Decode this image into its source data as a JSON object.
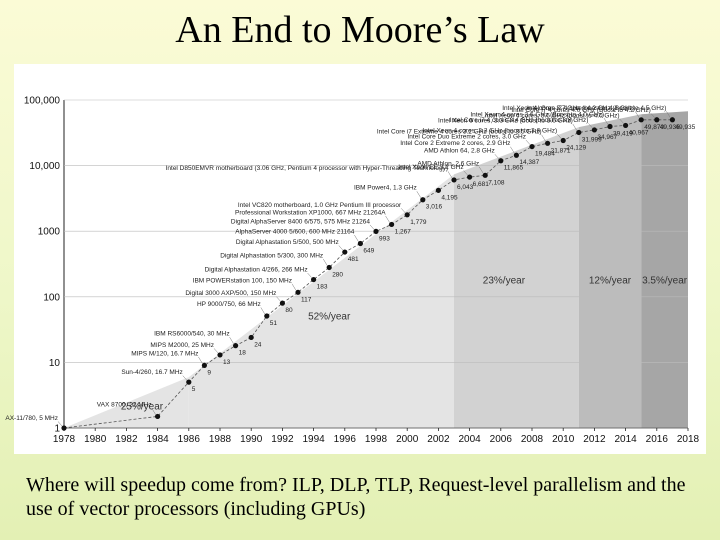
{
  "slide": {
    "title": "An End to Moore’s Law",
    "caption": "Where will speedup come from?  ILP, DLP, TLP, Request-level parallelism and the use of vector processors (including GPUs)"
  },
  "chart_data": {
    "type": "scatter",
    "title": "",
    "xlabel": "",
    "ylabel": "",
    "y_scale": "log",
    "xlim": [
      1978,
      2018
    ],
    "ylim": [
      1,
      100000
    ],
    "x_ticks": [
      "1978",
      "1980",
      "1982",
      "1984",
      "1986",
      "1988",
      "1990",
      "1992",
      "1994",
      "1996",
      "1998",
      "2000",
      "2002",
      "2004",
      "2006",
      "2008",
      "2010",
      "2012",
      "2014",
      "2016",
      "2018"
    ],
    "y_ticks": [
      {
        "value": 1,
        "label": "1"
      },
      {
        "value": 10,
        "label": "10"
      },
      {
        "value": 100,
        "label": "100"
      },
      {
        "value": 1000,
        "label": "1000"
      },
      {
        "value": 10000,
        "label": "10,000"
      },
      {
        "value": 100000,
        "label": "100,000"
      }
    ],
    "grid": true,
    "colors": {
      "point": "#111111",
      "trend": "#555555",
      "band_light": "#e4e4e4",
      "band_mid": "#d2d2d2",
      "band_dark": "#bcbcbc",
      "band_darkest": "#a6a6a6"
    },
    "regions": [
      {
        "x_start": 1978,
        "x_end": 1986,
        "rate_label": "25%/year",
        "label_x": 1983,
        "label_y": 1.9
      },
      {
        "x_start": 1986,
        "x_end": 2003,
        "rate_label": "52%/year",
        "label_x": 1995,
        "label_y": 45
      },
      {
        "x_start": 2003,
        "x_end": 2011,
        "rate_label": "23%/year",
        "label_x": 2006.2,
        "label_y": 160
      },
      {
        "x_start": 2011,
        "x_end": 2015,
        "rate_label": "12%/year",
        "label_x": 2013,
        "label_y": 160
      },
      {
        "x_start": 2015,
        "x_end": 2018,
        "rate_label": "3.5%/year",
        "label_x": 2016.5,
        "label_y": 160
      }
    ],
    "points": [
      {
        "x": 1978,
        "y": 1,
        "label": "",
        "name": "AX-11/780, 5 MHz"
      },
      {
        "x": 1984,
        "y": 1.5,
        "label": "",
        "name": "VAX 8700, 22 MHz"
      },
      {
        "x": 1986,
        "y": 5,
        "label": "5",
        "name": "Sun-4/260, 16.7 MHz"
      },
      {
        "x": 1987,
        "y": 9,
        "label": "9",
        "name": "MIPS M/120, 16.7 MHz"
      },
      {
        "x": 1988,
        "y": 13,
        "label": "13",
        "name": "MIPS M2000, 25 MHz"
      },
      {
        "x": 1989,
        "y": 18,
        "label": "18",
        "name": "IBM RS6000/540, 30 MHz"
      },
      {
        "x": 1990,
        "y": 24,
        "label": "24",
        "name": ""
      },
      {
        "x": 1991,
        "y": 51,
        "label": "51",
        "name": "HP 9000/750, 66 MHz"
      },
      {
        "x": 1992,
        "y": 80,
        "label": "80",
        "name": "Digital 3000 AXP/500, 150 MHz"
      },
      {
        "x": 1993,
        "y": 117,
        "label": "117",
        "name": "IBM POWERstation 100, 150 MHz"
      },
      {
        "x": 1994,
        "y": 183,
        "label": "183",
        "name": "Digital Alphastation 4/266, 266 MHz"
      },
      {
        "x": 1995,
        "y": 280,
        "label": "280",
        "name": "Digital Alphastation 5/300, 300 MHz"
      },
      {
        "x": 1996,
        "y": 481,
        "label": "481",
        "name": "Digital Alphastation 5/500, 500 MHz"
      },
      {
        "x": 1997,
        "y": 649,
        "label": "649",
        "name": "AlphaServer 4000 5/600, 600 MHz 21164"
      },
      {
        "x": 1998,
        "y": 993,
        "label": "993",
        "name": "Digital AlphaServer 8400 6/575, 575 MHz 21264"
      },
      {
        "x": 1999,
        "y": 1267,
        "label": "1,267",
        "name": "Professional Workstation XP1000, 667 MHz 21264A"
      },
      {
        "x": 2000,
        "y": 1779,
        "label": "1,779",
        "name": "Intel VC820 motherboard, 1.0 GHz Pentium III processor"
      },
      {
        "x": 2001,
        "y": 3016,
        "label": "3,016",
        "name": "IBM Power4, 1.3 GHz"
      },
      {
        "x": 2002,
        "y": 4195,
        "label": "4,195",
        "name": ""
      },
      {
        "x": 2003,
        "y": 6043,
        "label": "6,043",
        "name": "Intel D850EMVR motherboard (3.06 GHz, Pentium 4 processor with Hyper-Threading Technology)"
      },
      {
        "x": 2004,
        "y": 6681,
        "label": "6,681",
        "name": "Intel Xeon EE 3.2 GHz"
      },
      {
        "x": 2005,
        "y": 7108,
        "label": "7,108",
        "name": "AMD Athlon, 2.6 GHz"
      },
      {
        "x": 2006,
        "y": 11865,
        "label": "11,865",
        "name": "AMD Athlon 64, 2.8 GHz"
      },
      {
        "x": 2007,
        "y": 14387,
        "label": "14,387",
        "name": "Intel Core 2 Extreme 2 cores, 2.9 GHz"
      },
      {
        "x": 2008,
        "y": 19484,
        "label": "19,484",
        "name": "Intel Core Duo Extreme 2 cores, 3.0 GHz"
      },
      {
        "x": 2009,
        "y": 21871,
        "label": "21,871",
        "name": "Intel Core i7 Extreme 4 cores 3.2 GHz (boost to 3.5 GHz)"
      },
      {
        "x": 2010,
        "y": 24129,
        "label": "24,129",
        "name": "Intel Xeon 4 cores, 3.3 GHz (boost to 3.6 GHz)"
      },
      {
        "x": 2011,
        "y": 31999,
        "label": "31,999",
        "name": "Intel Xeon 6 cores, 3.3 GHz (boost to 3.6 GHz)"
      },
      {
        "x": 2012,
        "y": 34967,
        "label": "34,967",
        "name": "Intel Core i7 4 cores 3.4 GHz (boost to 3.8 GHz)"
      },
      {
        "x": 2013,
        "y": 39419,
        "label": "39,419",
        "name": "Intel Xeon 4 cores 3.6 GHz (Boost to 4.0 GHz)"
      },
      {
        "x": 2014,
        "y": 40967,
        "label": "40,967",
        "name": "Intel Xeon 4 cores, 3.6 GHz (boost to 4.0 GHz)"
      },
      {
        "x": 2015,
        "y": 49870,
        "label": "49,870",
        "name": "Intel Xeon 4 cores 3.7 GHz (boost to 4.1 GHz)"
      },
      {
        "x": 2016,
        "y": 49935,
        "label": "49,935",
        "name": "Intel Core i7 4 cores 4.0 GHz (Boost to 4.2 GHz)"
      },
      {
        "x": 2017,
        "y": 49935,
        "label": "49,935",
        "name": "Intel Core i7 4 cores 4.2 GHz (Boost to 4.5 GHz)"
      }
    ]
  }
}
